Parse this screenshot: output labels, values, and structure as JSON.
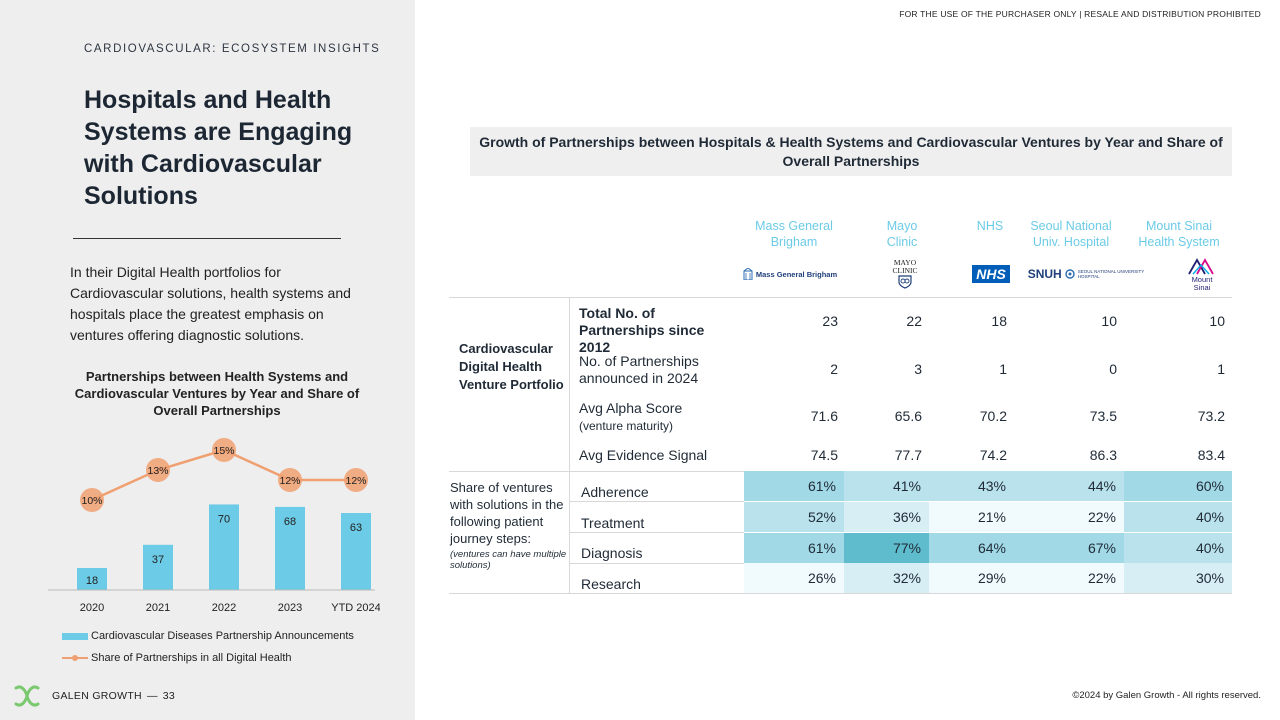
{
  "header": {
    "notice": "FOR THE USE OF THE PURCHASER ONLY | RESALE AND DISTRIBUTION PROHIBITED",
    "eyebrow": "CARDIOVASCULAR: ECOSYSTEM INSIGHTS",
    "title": "Hospitals and Health Systems are Engaging with Cardiovascular Solutions"
  },
  "intro": "In their Digital Health portfolios for Cardiovascular solutions, health systems and hospitals place the greatest emphasis on ventures offering diagnostic solutions.",
  "footer": {
    "brand": "GALEN GROWTH",
    "separator": "—",
    "page": "33",
    "copyright": "©2024 by Galen Growth  - All rights reserved."
  },
  "colors": {
    "bar": "#6ccbe6",
    "line": "#f0a070",
    "accent_text": "#6ccbe6",
    "heat_scale": [
      "#f1fafc",
      "#b9e2ec",
      "#6cc6d8"
    ]
  },
  "chart_data": [
    {
      "type": "bar+line",
      "title": "Partnerships between Health Systems and Cardiovascular Ventures by Year and Share of Overall Partnerships",
      "categories": [
        "2020",
        "2021",
        "2022",
        "2023",
        "YTD 2024"
      ],
      "series": [
        {
          "name": "Cardiovascular Diseases Partnership Announcements",
          "type": "bar",
          "values": [
            18,
            37,
            70,
            68,
            63
          ]
        },
        {
          "name": "Share of  Partnerships in all Digital Health",
          "type": "line",
          "values": [
            10,
            13,
            15,
            12,
            12
          ],
          "labels": [
            "10%",
            "13%",
            "15%",
            "12%",
            "12%"
          ]
        }
      ],
      "ylim_bar": [
        0,
        90
      ],
      "ylim_line": [
        0,
        20
      ],
      "legend": "bottom-left",
      "grid": false
    },
    {
      "type": "table",
      "title": "Growth of Partnerships between Hospitals & Health Systems and Cardiovascular Ventures by Year and Share of Overall Partnerships",
      "columns": [
        "Mass General Brigham",
        "Mayo Clinic",
        "NHS",
        "Seoul National Univ. Hospital",
        "Mount Sinai Health System"
      ],
      "section_label": "Cardiovascular Digital Health Venture Portfolio",
      "metrics": [
        {
          "label": "Total No. of Partnerships since 2012",
          "sub": "",
          "values": [
            "23",
            "22",
            "18",
            "10",
            "10"
          ]
        },
        {
          "label": "No. of Partnerships announced in 2024",
          "sub": "",
          "values": [
            "2",
            "3",
            "1",
            "0",
            "1"
          ]
        },
        {
          "label": "Avg Alpha Score",
          "sub": "(venture maturity)",
          "values": [
            "71.6",
            "65.6",
            "70.2",
            "73.5",
            "73.2"
          ]
        },
        {
          "label": "Avg Evidence Signal",
          "sub": "",
          "values": [
            "74.5",
            "77.7",
            "74.2",
            "86.3",
            "83.4"
          ]
        }
      ],
      "share_label": "Share of ventures with solutions in the following patient journey steps:",
      "share_note": "(ventures can have multiple solutions)",
      "share_rows": [
        {
          "step": "Adherence",
          "values": [
            61,
            41,
            43,
            44,
            60
          ],
          "labels": [
            "61%",
            "41%",
            "43%",
            "44%",
            "60%"
          ]
        },
        {
          "step": "Treatment",
          "values": [
            52,
            36,
            21,
            22,
            40
          ],
          "labels": [
            "52%",
            "36%",
            "21%",
            "22%",
            "40%"
          ]
        },
        {
          "step": "Diagnosis",
          "values": [
            61,
            77,
            64,
            67,
            40
          ],
          "labels": [
            "61%",
            "77%",
            "64%",
            "67%",
            "40%"
          ]
        },
        {
          "step": "Research",
          "values": [
            26,
            32,
            29,
            22,
            30
          ],
          "labels": [
            "26%",
            "32%",
            "29%",
            "22%",
            "30%"
          ]
        }
      ]
    }
  ],
  "logos": {
    "mgb": "Mass General Brigham",
    "mayo": [
      "MAYO",
      "CLINIC"
    ],
    "nhs": "NHS",
    "snuh": "SNUH",
    "snuh_sub": [
      "SEOUL NATIONAL UNIVERSITY",
      "HOSPITAL"
    ],
    "sinai": [
      "Mount",
      "Sinai"
    ]
  }
}
